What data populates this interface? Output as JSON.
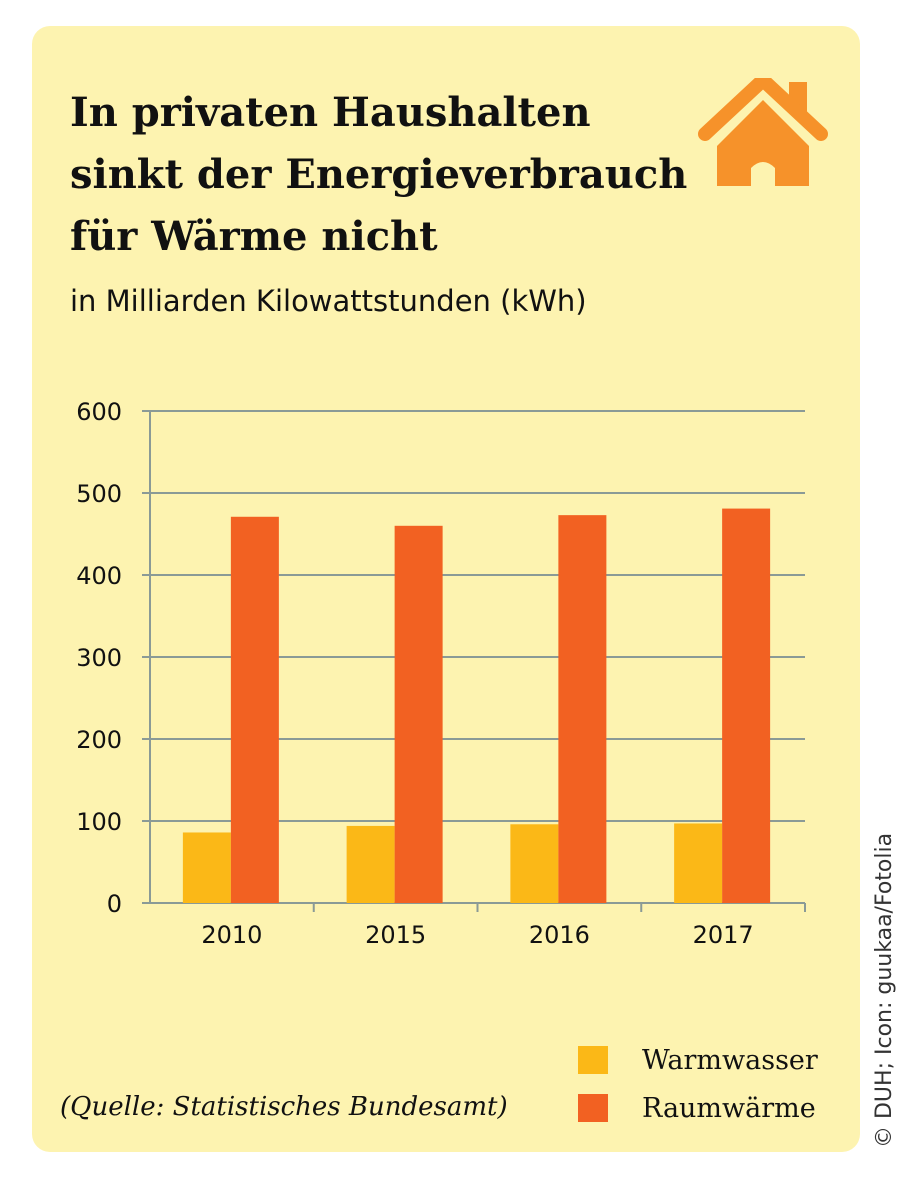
{
  "chart_data": {
    "type": "bar",
    "title": "In privaten Haushalten\nsinkt der Energieverbrauch\nfür Wärme nicht",
    "subtitle": "in Milliarden Kilowattstunden (kWh)",
    "categories": [
      "2010",
      "2015",
      "2016",
      "2017"
    ],
    "series": [
      {
        "name": "Warmwasser",
        "color": "#fbb817",
        "values": [
          86,
          94,
          96,
          97
        ]
      },
      {
        "name": "Raumwärme",
        "color": "#f26122",
        "values": [
          471,
          460,
          473,
          481
        ]
      }
    ],
    "ylim": [
      0,
      600
    ],
    "yticks": [
      "0",
      "100",
      "200",
      "300",
      "400",
      "500",
      "600"
    ],
    "grid": true,
    "legend_position": "bottom-right"
  },
  "source": "(Quelle: Statistisches Bundesamt)",
  "credit": "© DUH; Icon: guukaa/Fotolia",
  "icon": "house-icon",
  "colors": {
    "background": "#fdf3b0",
    "grid": "#8a9a96",
    "icon": "#f6922a"
  }
}
